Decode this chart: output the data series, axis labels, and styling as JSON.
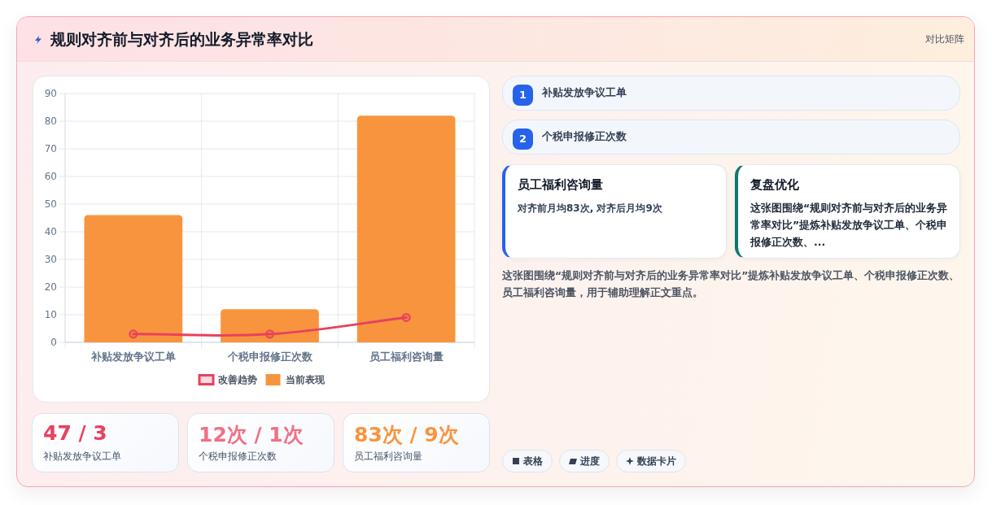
{
  "chart_data": {
    "type": "bar",
    "title": "规则对齐前与对齐后的业务异常率对比",
    "categories": [
      "补贴发放争议工单",
      "个税申报修正次数",
      "员工福利咨询量"
    ],
    "series": [
      {
        "name": "改善趋势",
        "type": "line",
        "color": "#e8415f",
        "values": [
          3,
          3,
          9
        ]
      },
      {
        "name": "当前表现",
        "color": "#f9943e",
        "values": [
          46,
          12,
          82
        ]
      }
    ],
    "ylim": [
      0,
      90
    ],
    "yticks": [
      0,
      10,
      20,
      30,
      40,
      50,
      60,
      70,
      80,
      90
    ],
    "grid": true,
    "legend": "bottom",
    "marker": "circle",
    "annotations": [
      "对比矩阵",
      "1",
      "补贴发放争议工单",
      "2",
      "个税申报修正次数",
      "员工福利咨询量",
      "对齐前月均83次, 对齐后月均9次",
      "复盘优化",
      "这张图围绕“规则对齐前与对齐后的业务异常率对比”提炼补贴发放争议工单、个税申报修正次数、...",
      "这张图围绕“规则对齐前与对齐后的业务异常率对比”提炼补贴发放争议工单、个税申报修正次数、员工福利咨询量，用于辅助理解正文重点。",
      "47 / 3",
      "补贴发放争议工单",
      "12次 / 1次",
      "个税申报修正次数",
      "83次 / 9次",
      "员工福利咨询量",
      "表格",
      "进度",
      "数据卡片"
    ]
  }
}
